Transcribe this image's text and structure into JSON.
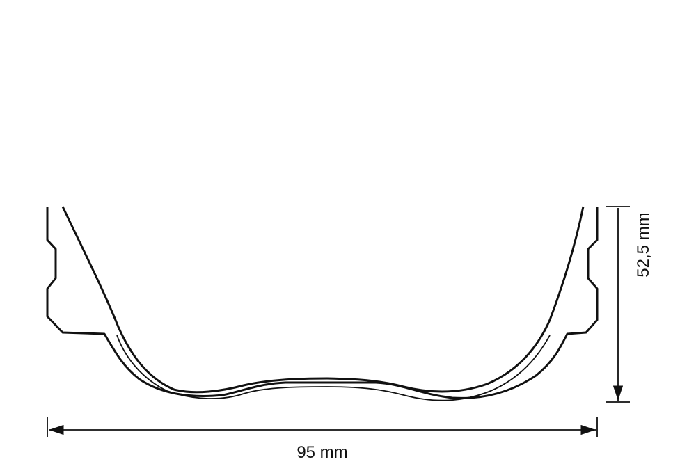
{
  "dimensions": {
    "width": "95 mm",
    "height": "52,5 mm"
  }
}
